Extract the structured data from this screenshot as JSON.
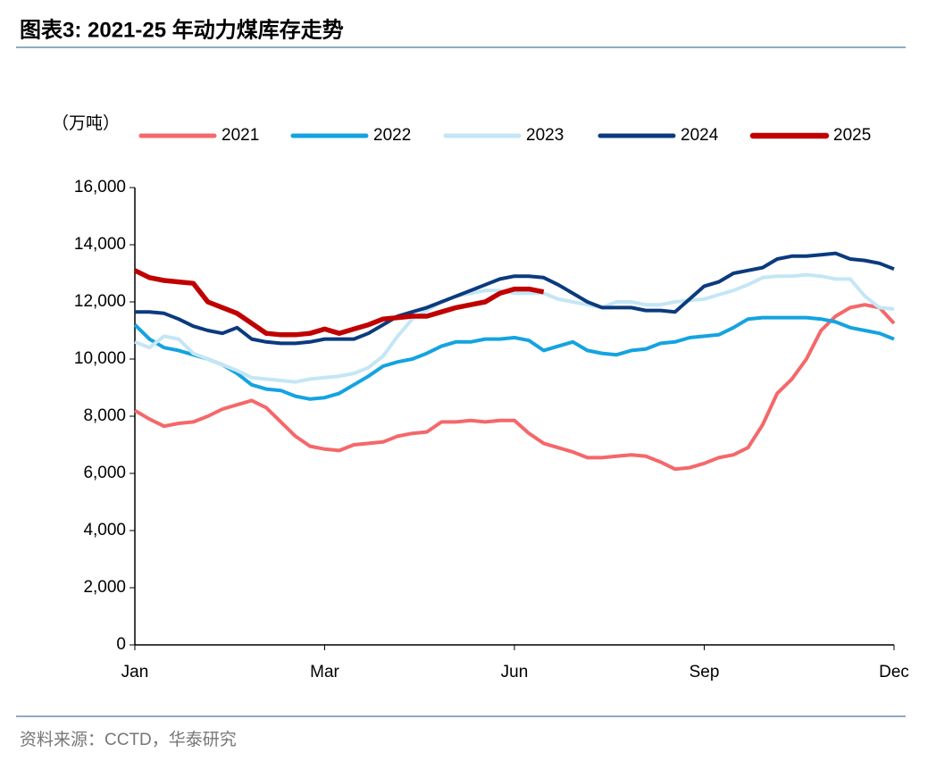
{
  "chart_data": {
    "type": "line",
    "title": "图表3:  2021-25 年动力煤库存走势",
    "ylabel": "（万吨）",
    "source": "资料来源：CCTD，华泰研究",
    "categories": [
      "Jan",
      null,
      null,
      null,
      null,
      null,
      null,
      null,
      null,
      null,
      null,
      null,
      null,
      "Mar",
      null,
      null,
      null,
      null,
      null,
      null,
      null,
      null,
      null,
      null,
      null,
      null,
      "Jun",
      null,
      null,
      null,
      null,
      null,
      null,
      null,
      null,
      null,
      null,
      null,
      null,
      "Sep",
      null,
      null,
      null,
      null,
      null,
      null,
      null,
      null,
      null,
      null,
      null,
      null,
      "Dec"
    ],
    "ylim": [
      0,
      16000
    ],
    "yticks": [
      0,
      {
        "value": 2000,
        "label": "2,000"
      },
      {
        "value": 4000,
        "label": "4,000"
      },
      {
        "value": 6000,
        "label": "6,000"
      },
      {
        "value": 8000,
        "label": "8,000"
      },
      {
        "value": 10000,
        "label": "10,000"
      },
      {
        "value": 12000,
        "label": "12,000"
      },
      {
        "value": 14000,
        "label": "14,000"
      },
      {
        "value": 16000,
        "label": "16,000"
      }
    ],
    "legend": "top",
    "series": [
      {
        "name": "2021",
        "color": "#f4686a",
        "values": [
          8200,
          7900,
          7650,
          7750,
          7800,
          8000,
          8250,
          8400,
          8550,
          8300,
          7800,
          7300,
          6950,
          6850,
          6800,
          7000,
          7050,
          7100,
          7300,
          7400,
          7450,
          7800,
          7800,
          7850,
          7800,
          7850,
          7850,
          7400,
          7050,
          6900,
          6750,
          6550,
          6550,
          6600,
          6650,
          6600,
          6400,
          6150,
          6200,
          6350,
          6550,
          6650,
          6900,
          7700,
          8800,
          9300,
          10000,
          11000,
          11500,
          11800,
          11900,
          11800,
          11250
        ]
      },
      {
        "name": "2022",
        "color": "#14a3e0",
        "values": [
          11200,
          10700,
          10400,
          10300,
          10150,
          10000,
          9800,
          9500,
          9100,
          8950,
          8900,
          8700,
          8600,
          8650,
          8800,
          9100,
          9400,
          9750,
          9900,
          10000,
          10200,
          10450,
          10600,
          10600,
          10700,
          10700,
          10750,
          10650,
          10300,
          10450,
          10600,
          10300,
          10200,
          10150,
          10300,
          10350,
          10550,
          10600,
          10750,
          10800,
          10850,
          11100,
          11400,
          11450,
          11450,
          11450,
          11450,
          11400,
          11300,
          11100,
          11000,
          10900,
          10700
        ]
      },
      {
        "name": "2023",
        "color": "#c4e6f5",
        "values": [
          10600,
          10400,
          10800,
          10700,
          10200,
          10000,
          9800,
          9600,
          9350,
          9300,
          9250,
          9200,
          9300,
          9350,
          9400,
          9500,
          9700,
          10100,
          10800,
          11400,
          11700,
          12000,
          12200,
          12300,
          12400,
          12400,
          12300,
          12300,
          12300,
          12100,
          12000,
          11900,
          11800,
          12000,
          12000,
          11900,
          11900,
          12000,
          12050,
          12100,
          12250,
          12400,
          12600,
          12850,
          12900,
          12900,
          12950,
          12900,
          12800,
          12800,
          12200,
          11800,
          11750
        ]
      },
      {
        "name": "2024",
        "color": "#0b3a7e",
        "values": [
          11650,
          11650,
          11600,
          11400,
          11150,
          11000,
          10900,
          11100,
          10700,
          10600,
          10550,
          10550,
          10600,
          10700,
          10700,
          10700,
          10900,
          11200,
          11500,
          11650,
          11800,
          12000,
          12200,
          12400,
          12600,
          12800,
          12900,
          12900,
          12850,
          12600,
          12300,
          12000,
          11800,
          11800,
          11800,
          11700,
          11700,
          11650,
          12100,
          12550,
          12700,
          13000,
          13100,
          13200,
          13500,
          13600,
          13600,
          13650,
          13700,
          13500,
          13450,
          13350,
          13150
        ]
      },
      {
        "name": "2025",
        "color": "#c00000",
        "values": [
          13100,
          12850,
          12750,
          12700,
          12650,
          12000,
          11800,
          11600,
          11250,
          10900,
          10850,
          10850,
          10900,
          11050,
          10900,
          11050,
          11200,
          11400,
          11450,
          11500,
          11500,
          11650,
          11800,
          11900,
          12000,
          12300,
          12450,
          12450,
          12350,
          null,
          null,
          null,
          null,
          null,
          null,
          null,
          null,
          null,
          null,
          null,
          null,
          null,
          null,
          null,
          null,
          null,
          null,
          null,
          null,
          null,
          null,
          null,
          null
        ]
      }
    ]
  }
}
